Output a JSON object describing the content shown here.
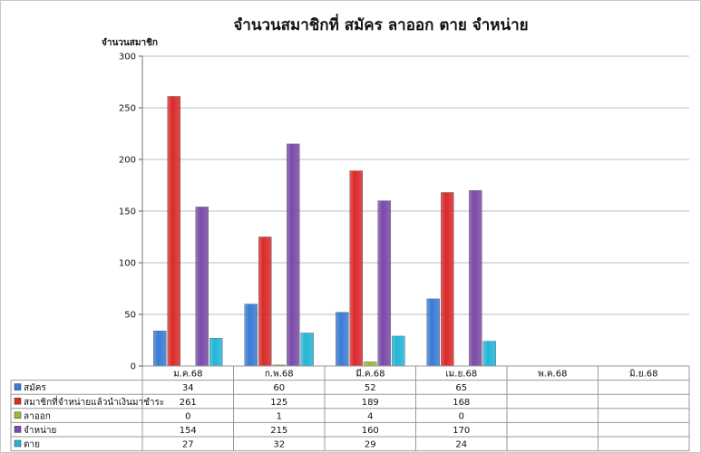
{
  "chart_data": {
    "type": "bar",
    "title": "จำนวนสมาชิกที่ สมัคร ลาออก ตาย จำหน่าย",
    "ylabel": "จำนวนสมาชิก",
    "ylim": [
      0,
      300
    ],
    "yticks": [
      "0",
      "50",
      "100",
      "150",
      "200",
      "250",
      "300"
    ],
    "grid": true,
    "legend": "data-table",
    "categories": [
      "ม.ค.68",
      "ก.พ.68",
      "มี.ค.68",
      "เม.ย.68",
      "พ.ค.68",
      "มิ.ย.68"
    ],
    "series": [
      {
        "name": "สมัคร",
        "color": "#3a7bd5",
        "values": [
          34,
          60,
          52,
          65,
          null,
          null
        ],
        "labels": [
          "34",
          "60",
          "52",
          "65",
          "",
          ""
        ]
      },
      {
        "name": "สมาชิกที่จำหน่ายแล้วนำเงินมาชำระ",
        "color": "#d92b2b",
        "values": [
          261,
          125,
          189,
          168,
          null,
          null
        ],
        "labels": [
          "261",
          "125",
          "189",
          "168",
          "",
          ""
        ]
      },
      {
        "name": "ลาออก",
        "color": "#9bbb2a",
        "values": [
          0,
          1,
          4,
          0,
          null,
          null
        ],
        "labels": [
          "0",
          "1",
          "4",
          "0",
          "",
          ""
        ]
      },
      {
        "name": "จำหน่าย",
        "color": "#7a4ba8",
        "values": [
          154,
          215,
          160,
          170,
          null,
          null
        ],
        "labels": [
          "154",
          "215",
          "160",
          "170",
          "",
          ""
        ]
      },
      {
        "name": "ตาย",
        "color": "#23b5d6",
        "values": [
          27,
          32,
          29,
          24,
          null,
          null
        ],
        "labels": [
          "27",
          "32",
          "29",
          "24",
          "",
          ""
        ]
      }
    ]
  }
}
